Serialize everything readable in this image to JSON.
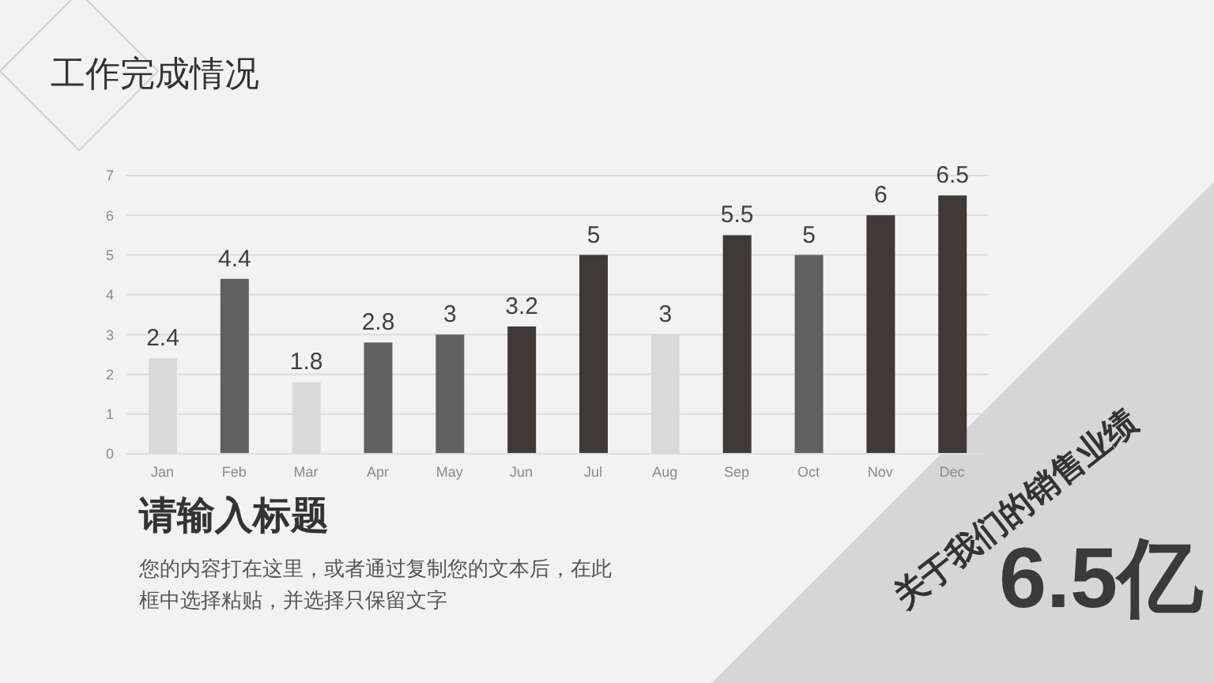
{
  "chart_data": {
    "type": "bar",
    "title": "工作完成情况",
    "categories": [
      "Jan",
      "Feb",
      "Mar",
      "Apr",
      "May",
      "Jun",
      "Jul",
      "Aug",
      "Sep",
      "Oct",
      "Nov",
      "Dec"
    ],
    "values": [
      2.4,
      4.4,
      1.8,
      2.8,
      3,
      3.2,
      5,
      3,
      5.5,
      5,
      6,
      6.5
    ],
    "colors": [
      "#d9d9d9",
      "#606060",
      "#d9d9d9",
      "#606060",
      "#606060",
      "#3f3937",
      "#3f3937",
      "#d9d9d9",
      "#3f3937",
      "#606060",
      "#3f3937",
      "#3f3937"
    ],
    "ylim": [
      0,
      7
    ],
    "yticks": [
      0,
      1,
      2,
      3,
      4,
      5,
      6,
      7
    ],
    "grid": "y",
    "data_labels": true,
    "annotations": [
      "请输入标题",
      "您的内容打在这里，或者通过复制您的文本后，在此框中选择粘贴，并选择只保留文字",
      "关于我们的销售业绩",
      "6.5亿"
    ]
  }
}
